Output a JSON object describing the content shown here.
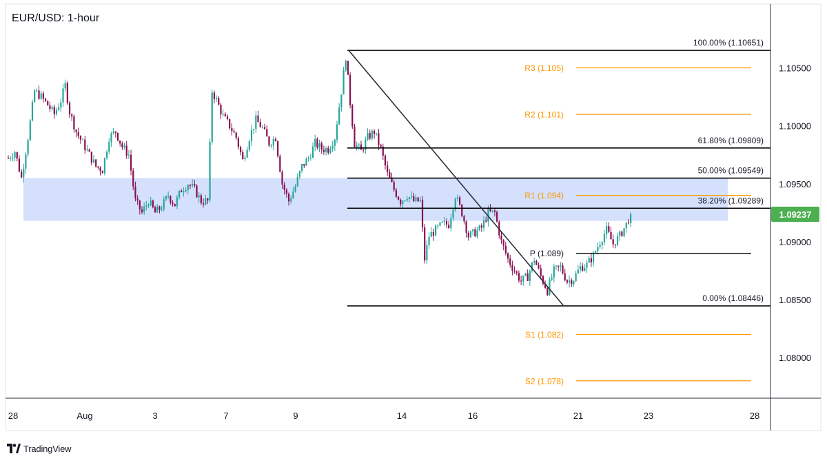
{
  "chart_data": {
    "type": "candlestick",
    "title": "EUR/USD: 1-hour",
    "ylim": [
      1.0765,
      1.1105
    ],
    "y_ticks": [
      "1.10500",
      "1.10000",
      "1.09500",
      "1.09000",
      "1.08500",
      "1.08000"
    ],
    "y_tick_values": [
      1.105,
      1.1,
      1.095,
      1.09,
      1.085,
      1.08
    ],
    "x_ticks": [
      "28",
      "Aug",
      "3",
      "7",
      "9",
      "14",
      "16",
      "21",
      "23",
      "28"
    ],
    "current_price": 1.09237,
    "current_price_label": "1.09237",
    "colors": {
      "up": "#26a69a",
      "down": "#880e4f",
      "zone": "#c5d5fb",
      "fib_line": "#000000",
      "pivot_line": "#ff9800",
      "price_badge": "#4caf50",
      "trendline": "#2a2e39"
    },
    "supply_zone": {
      "from": 1.0918,
      "to": 1.0955
    },
    "fibonacci": [
      {
        "label": "100.00% (1.10651)",
        "value": 1.10651
      },
      {
        "label": "61.80% (1.09809)",
        "value": 1.09809
      },
      {
        "label": "50.00% (1.09549)",
        "value": 1.09549
      },
      {
        "label": "38.20% (1.09289)",
        "value": 1.09289
      },
      {
        "label": "0.00% (1.08446)",
        "value": 1.08446
      }
    ],
    "pivots": [
      {
        "label": "R3 (1.105)",
        "value": 1.105,
        "color": "#ff9800"
      },
      {
        "label": "R2 (1.101)",
        "value": 1.101,
        "color": "#ff9800"
      },
      {
        "label": "R1 (1.094)",
        "value": 1.094,
        "color": "#ff9800"
      },
      {
        "label": "P (1.089)",
        "value": 1.089,
        "color": "#000000"
      },
      {
        "label": "S1 (1.082)",
        "value": 1.082,
        "color": "#ff9800"
      },
      {
        "label": "S2 (1.078)",
        "value": 1.078,
        "color": "#ff9800"
      }
    ],
    "trendline": {
      "from": 1.10651,
      "to": 1.08446
    },
    "price_path": [
      [
        0,
        1.0972
      ],
      [
        3,
        1.0978
      ],
      [
        6,
        1.0955
      ],
      [
        9,
        1.099
      ],
      [
        12,
        1.103
      ],
      [
        15,
        1.1025
      ],
      [
        18,
        1.1018
      ],
      [
        21,
        1.101
      ],
      [
        24,
        1.1022
      ],
      [
        26,
        1.1035
      ],
      [
        28,
        1.1012
      ],
      [
        31,
        1.0995
      ],
      [
        34,
        1.0985
      ],
      [
        37,
        1.0975
      ],
      [
        40,
        1.0965
      ],
      [
        43,
        1.0962
      ],
      [
        46,
        1.099
      ],
      [
        49,
        1.0995
      ],
      [
        52,
        1.0982
      ],
      [
        55,
        1.0975
      ],
      [
        58,
        1.0935
      ],
      [
        61,
        1.0925
      ],
      [
        64,
        1.0935
      ],
      [
        67,
        1.0925
      ],
      [
        70,
        1.093
      ],
      [
        73,
        1.094
      ],
      [
        76,
        1.0932
      ],
      [
        79,
        1.0945
      ],
      [
        82,
        1.095
      ],
      [
        85,
        1.0945
      ],
      [
        88,
        1.0935
      ],
      [
        91,
        1.0935
      ],
      [
        93,
        1.103
      ],
      [
        95,
        1.1022
      ],
      [
        98,
        1.1008
      ],
      [
        101,
        1.1
      ],
      [
        104,
        1.099
      ],
      [
        107,
        1.097
      ],
      [
        110,
        1.099
      ],
      [
        113,
        1.1005
      ],
      [
        116,
        1.0998
      ],
      [
        119,
        1.0985
      ],
      [
        122,
        1.099
      ],
      [
        125,
        1.095
      ],
      [
        128,
        1.0935
      ],
      [
        131,
        1.0948
      ],
      [
        134,
        1.0965
      ],
      [
        137,
        1.0972
      ],
      [
        140,
        1.0985
      ],
      [
        143,
        1.098
      ],
      [
        146,
        1.098
      ],
      [
        149,
        1.099
      ],
      [
        152,
        1.103
      ],
      [
        154,
        1.106
      ],
      [
        156,
        1.102
      ],
      [
        158,
        1.0985
      ],
      [
        161,
        1.0978
      ],
      [
        164,
        1.099
      ],
      [
        167,
        1.0995
      ],
      [
        170,
        1.098
      ],
      [
        173,
        1.0958
      ],
      [
        176,
        1.0945
      ],
      [
        179,
        1.0935
      ],
      [
        182,
        1.094
      ],
      [
        185,
        1.0935
      ],
      [
        188,
        1.0935
      ],
      [
        190,
        1.0885
      ],
      [
        192,
        1.0905
      ],
      [
        195,
        1.091
      ],
      [
        198,
        1.0915
      ],
      [
        201,
        1.0915
      ],
      [
        204,
        1.094
      ],
      [
        207,
        1.0925
      ],
      [
        210,
        1.0905
      ],
      [
        213,
        1.0908
      ],
      [
        216,
        1.0912
      ],
      [
        219,
        1.0925
      ],
      [
        222,
        1.0925
      ],
      [
        225,
        1.09
      ],
      [
        228,
        1.0885
      ],
      [
        231,
        1.0875
      ],
      [
        234,
        1.0866
      ],
      [
        237,
        1.087
      ],
      [
        240,
        1.0885
      ],
      [
        243,
        1.087
      ],
      [
        246,
        1.0858
      ],
      [
        249,
        1.0875
      ],
      [
        252,
        1.0878
      ],
      [
        255,
        1.0866
      ],
      [
        258,
        1.0868
      ],
      [
        261,
        1.0878
      ],
      [
        264,
        1.088
      ],
      [
        267,
        1.0888
      ],
      [
        270,
        1.09
      ],
      [
        273,
        1.091
      ],
      [
        276,
        1.0898
      ],
      [
        279,
        1.0905
      ],
      [
        282,
        1.0915
      ],
      [
        284,
        1.0924
      ]
    ]
  }
}
